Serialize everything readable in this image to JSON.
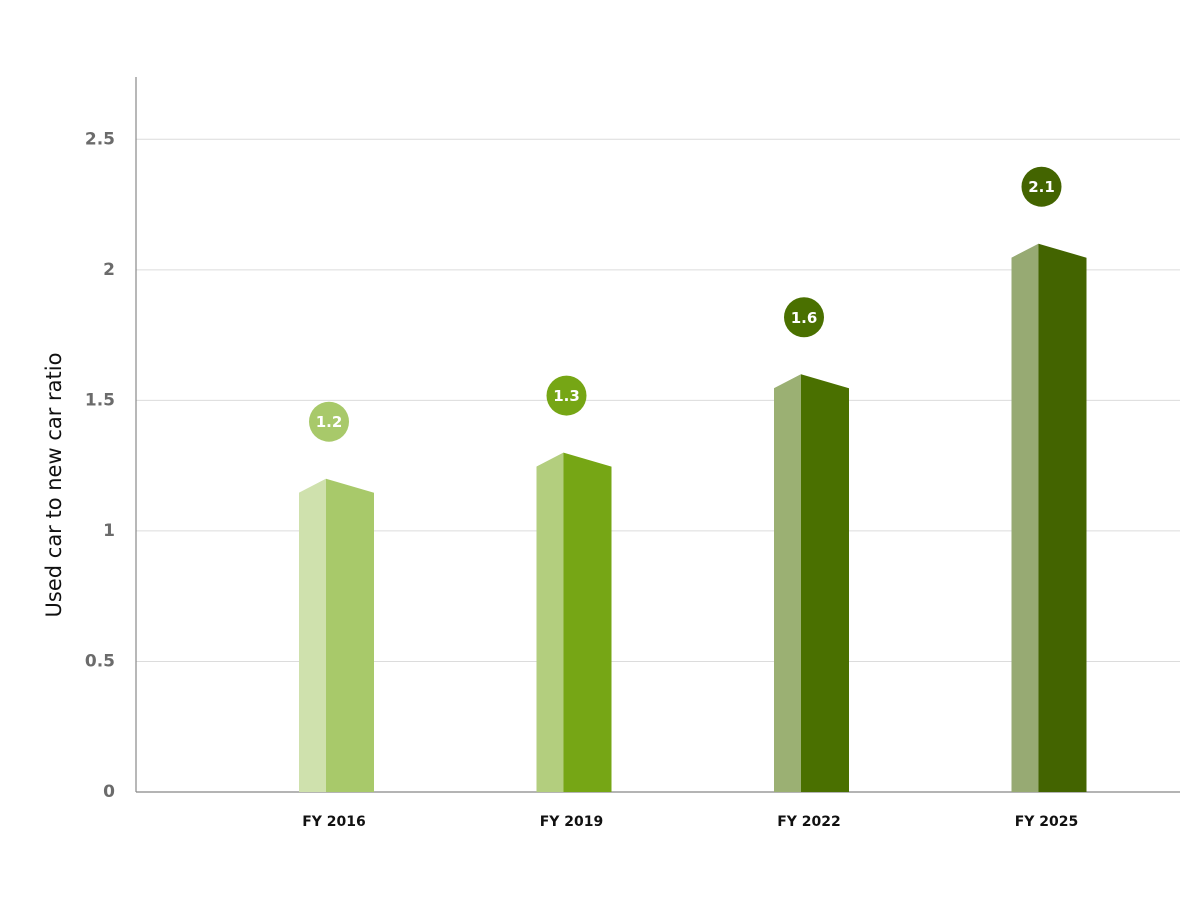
{
  "chart_data": {
    "type": "bar",
    "y_label": "Used car to new car ratio",
    "categories": [
      "FY 2016",
      "FY 2019",
      "FY 2022",
      "FY 2025"
    ],
    "values": [
      1.2,
      1.3,
      1.6,
      2.1
    ],
    "colors": [
      "#a8c96a",
      "#76a615",
      "#4a7000",
      "#436400"
    ],
    "ylim": [
      0,
      2.75
    ],
    "yticks": [
      0,
      0.5,
      1,
      1.5,
      2,
      2.5
    ],
    "grid": true
  }
}
